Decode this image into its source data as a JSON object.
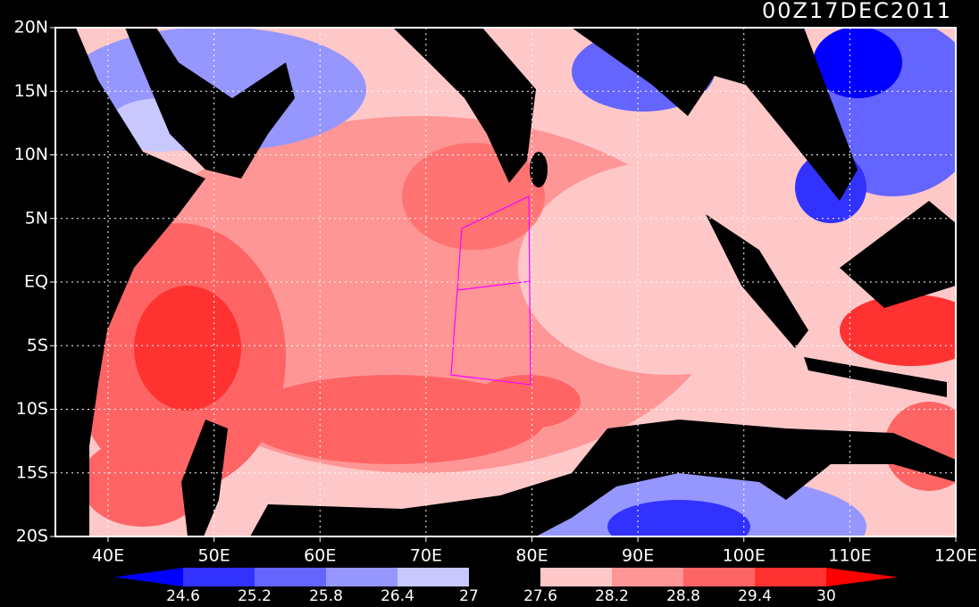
{
  "title": "00Z17DEC2011",
  "lat_labels": [
    "20N",
    "15N",
    "10N",
    "5N",
    "EQ",
    "5S",
    "10S",
    "15S",
    "20S"
  ],
  "lon_labels": [
    "40E",
    "50E",
    "60E",
    "70E",
    "80E",
    "90E",
    "100E",
    "110E",
    "120E"
  ],
  "colorbar": {
    "labels": [
      "24.6",
      "25.2",
      "25.8",
      "26.4",
      "27",
      "27.6",
      "28.2",
      "28.8",
      "29.4",
      "30"
    ],
    "colors": [
      "#0000ff",
      "#3232ff",
      "#6464ff",
      "#9696ff",
      "#c8c8ff",
      "#000000",
      "#ffc8c8",
      "#ff9696",
      "#ff6464",
      "#ff3232",
      "#ff0000"
    ]
  }
}
